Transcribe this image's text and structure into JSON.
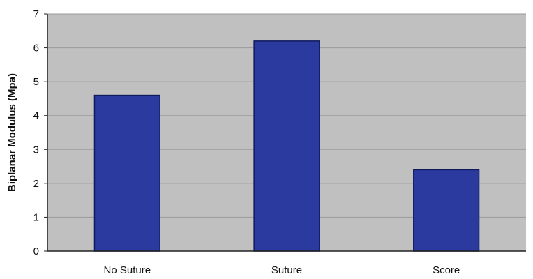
{
  "chart_data": {
    "type": "bar",
    "categories": [
      "No Suture",
      "Suture",
      "Score"
    ],
    "values": [
      4.6,
      6.2,
      2.4
    ],
    "title": "",
    "xlabel": "",
    "ylabel": "Biplanar Modulus (Mpa)",
    "ylim": [
      0,
      7
    ],
    "yticks": [
      "0",
      "1",
      "2",
      "3",
      "4",
      "5",
      "6",
      "7"
    ],
    "grid": true,
    "legend": "none"
  },
  "colors": {
    "bar": "#2b3a9e",
    "bar_edge": "#101a5e",
    "plot_background": "#c0c0c0",
    "grid": "#9a9a9a"
  }
}
